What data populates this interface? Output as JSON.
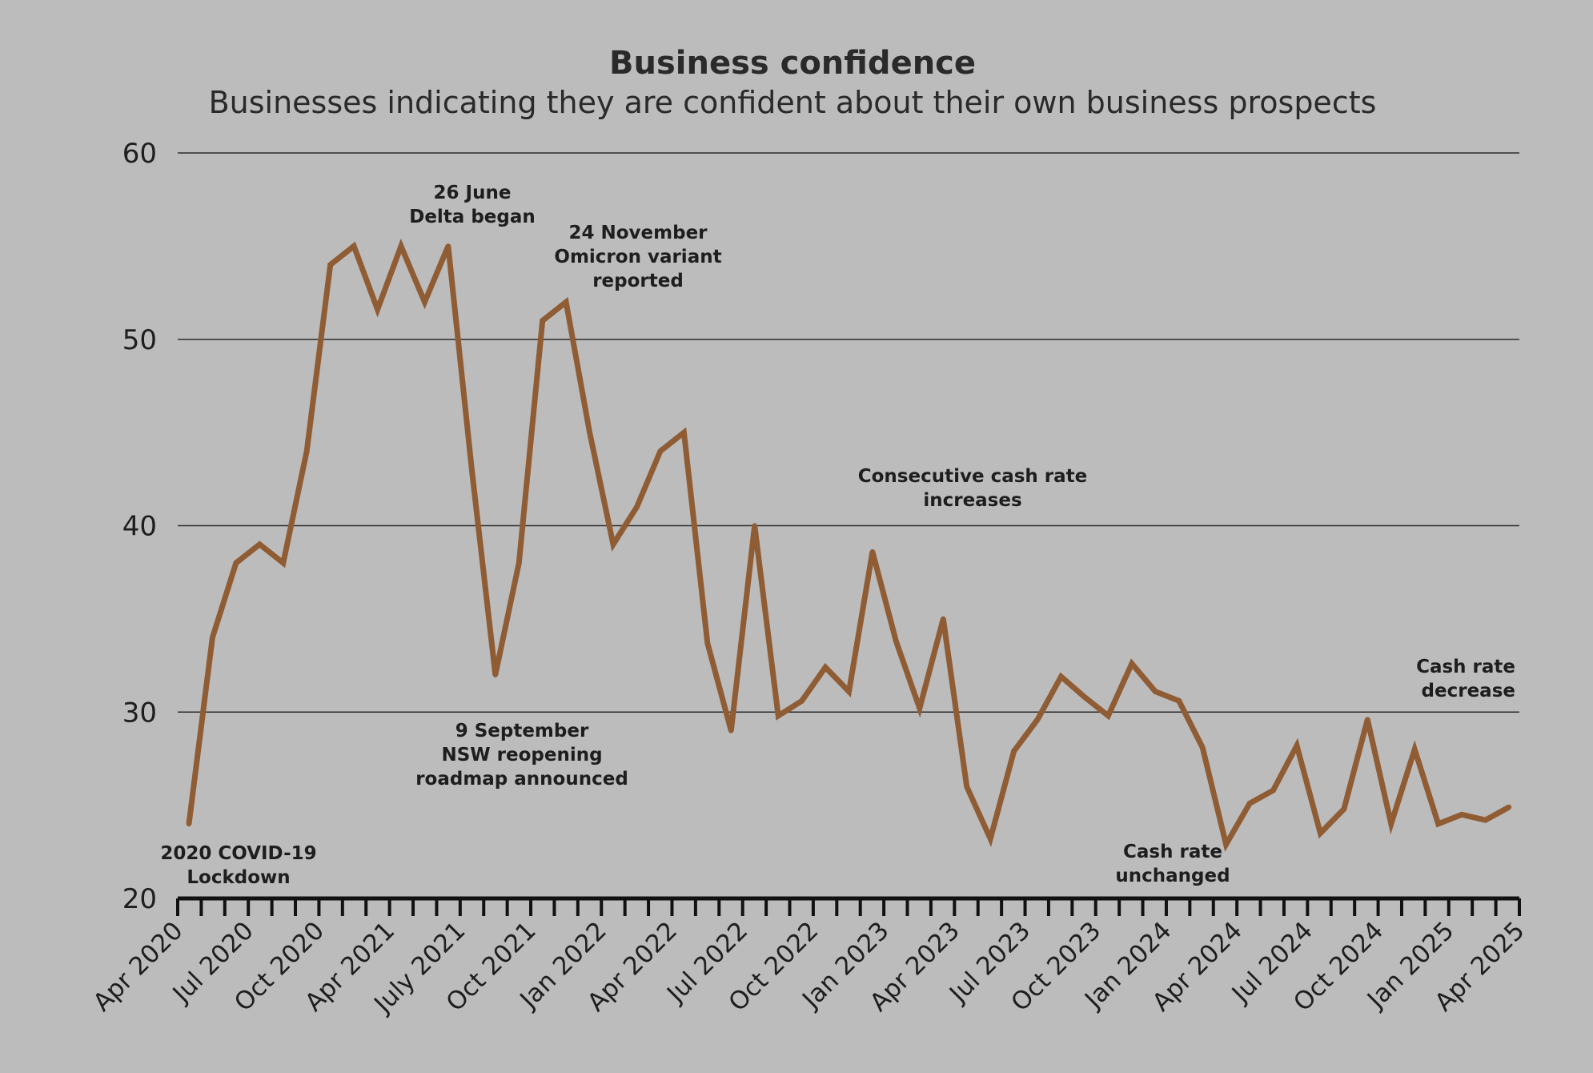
{
  "chart_data": {
    "type": "line",
    "title": "Business confidence",
    "subtitle": "Businesses indicating they are confident about their own business prospects",
    "xlabel": "",
    "ylabel": "",
    "ylim": [
      20,
      60
    ],
    "yticks": [
      "20",
      "30",
      "40",
      "50",
      "60"
    ],
    "grid": true,
    "x_tick_labels": [
      "Apr 2020",
      "Jul 2020",
      "Oct 2020",
      "Apr 2021",
      "July 2021",
      "Oct 2021",
      "Jan 2022",
      "Apr 2022",
      "Jul 2022",
      "Oct 2022",
      "Jan 2023",
      "Apr 2023",
      "Jul 2023",
      "Oct 2023",
      "Jan 2024",
      "Apr 2024",
      "Jul 2024",
      "Oct 2024",
      "Jan 2025",
      "Apr 2025"
    ],
    "series": [
      {
        "values": [
          24,
          34,
          38,
          39,
          38,
          44,
          54,
          55,
          51.6,
          55,
          52,
          55,
          43,
          32,
          38,
          51,
          52,
          45,
          39,
          41,
          44,
          45,
          33.7,
          29,
          40,
          29.8,
          30.6,
          32.4,
          31.1,
          38.6,
          33.8,
          30.2,
          35,
          26,
          23.2,
          27.9,
          29.6,
          31.9,
          30.8,
          29.8,
          32.6,
          31.1,
          30.6,
          28.1,
          22.9,
          25.1,
          25.8,
          28.2,
          23.5,
          24.8,
          29.6,
          24,
          28,
          24,
          24.5,
          24.2,
          24.9
        ]
      }
    ],
    "line_color": "#8f5c34",
    "annotations": [
      {
        "lines": [
          "2020 COVID-19",
          "Lockdown"
        ]
      },
      {
        "lines": [
          "26 June",
          "Delta began"
        ]
      },
      {
        "lines": [
          "24 November",
          "Omicron variant",
          "reported"
        ]
      },
      {
        "lines": [
          "9 September",
          "NSW reopening",
          "roadmap announced"
        ]
      },
      {
        "lines": [
          "Consecutive cash rate",
          "increases"
        ]
      },
      {
        "lines": [
          "Cash rate",
          "unchanged"
        ]
      },
      {
        "lines": [
          "Cash rate",
          "decrease"
        ]
      }
    ]
  }
}
